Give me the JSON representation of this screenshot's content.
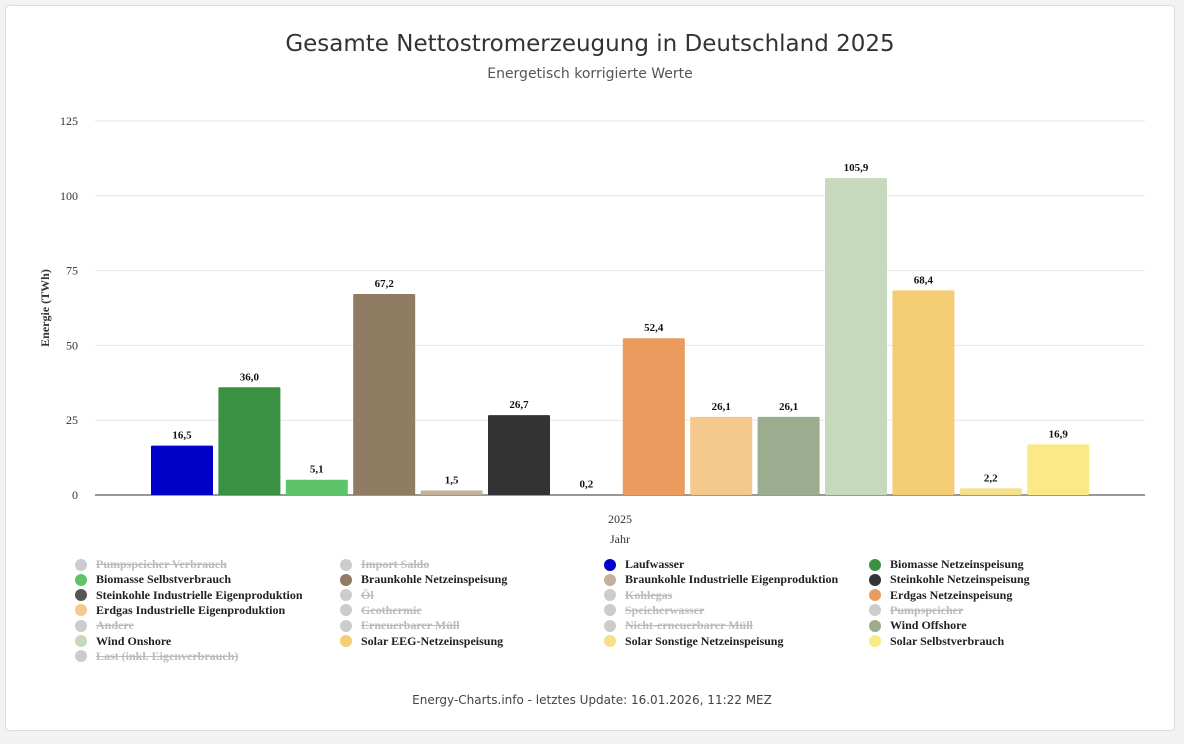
{
  "chart_data": {
    "type": "bar",
    "title": "Gesamte Nettostromerzeugung in Deutschland 2025",
    "subtitle": "Energetisch korrigierte Werte",
    "xlabel": "Jahr",
    "ylabel": "Energie (TWh)",
    "categories": [
      "2025"
    ],
    "ylim": [
      0,
      125
    ],
    "yticks": [
      "0",
      "25",
      "50",
      "75",
      "100",
      "125"
    ],
    "grid": true,
    "legend_position": "bottom",
    "bar_series": [
      {
        "name": "Laufwasser",
        "value": 16.5,
        "label": "16,5",
        "color": "#0000c8"
      },
      {
        "name": "Biomasse Netzeinspeisung",
        "value": 36.0,
        "label": "36,0",
        "color": "#3a9142"
      },
      {
        "name": "Biomasse Selbstverbrauch",
        "value": 5.1,
        "label": "5,1",
        "color": "#5ec46a"
      },
      {
        "name": "Braunkohle Netzeinspeisung",
        "value": 67.2,
        "label": "67,2",
        "color": "#8f7c62"
      },
      {
        "name": "Braunkohle Industrielle Eigenproduktion",
        "value": 1.5,
        "label": "1,5",
        "color": "#c4b19b"
      },
      {
        "name": "Steinkohle Netzeinspeisung",
        "value": 26.7,
        "label": "26,7",
        "color": "#333333"
      },
      {
        "name": "Steinkohle Industrielle Eigenproduktion",
        "value": 0.2,
        "label": "0,2",
        "color": "#555555"
      },
      {
        "name": "Erdgas Netzeinspeisung",
        "value": 52.4,
        "label": "52,4",
        "color": "#ea9b5d"
      },
      {
        "name": "Erdgas Industrielle Eigenproduktion",
        "value": 26.1,
        "label": "26,1",
        "color": "#f5c98b"
      },
      {
        "name": "Wind Offshore",
        "value": 26.1,
        "label": "26,1",
        "color": "#9cad8f"
      },
      {
        "name": "Wind Onshore",
        "value": 105.9,
        "label": "105,9",
        "color": "#c7d9bd"
      },
      {
        "name": "Solar EEG-Netzeinspeisung",
        "value": 68.4,
        "label": "68,4",
        "color": "#f4cd74"
      },
      {
        "name": "Solar Sonstige Netzeinspeisung",
        "value": 2.2,
        "label": "2,2",
        "color": "#f7e08a"
      },
      {
        "name": "Solar Selbstverbrauch",
        "value": 16.9,
        "label": "16,9",
        "color": "#fbe985"
      }
    ],
    "legend": [
      {
        "name": "Pumpspeicher Verbrauch",
        "color": "#cccccc",
        "hidden": true
      },
      {
        "name": "Import Saldo",
        "color": "#cccccc",
        "hidden": true
      },
      {
        "name": "Laufwasser",
        "color": "#0000c8",
        "hidden": false
      },
      {
        "name": "Biomasse Netzeinspeisung",
        "color": "#3a9142",
        "hidden": false
      },
      {
        "name": "Biomasse Selbstverbrauch",
        "color": "#5ec46a",
        "hidden": false
      },
      {
        "name": "Braunkohle Netzeinspeisung",
        "color": "#8f7c62",
        "hidden": false
      },
      {
        "name": "Braunkohle Industrielle Eigenproduktion",
        "color": "#c4b19b",
        "hidden": false
      },
      {
        "name": "Steinkohle Netzeinspeisung",
        "color": "#333333",
        "hidden": false
      },
      {
        "name": "Steinkohle Industrielle Eigenproduktion",
        "color": "#555555",
        "hidden": false
      },
      {
        "name": "Öl",
        "color": "#cccccc",
        "hidden": true
      },
      {
        "name": "Kohlegas",
        "color": "#cccccc",
        "hidden": true
      },
      {
        "name": "Erdgas Netzeinspeisung",
        "color": "#ea9b5d",
        "hidden": false
      },
      {
        "name": "Erdgas Industrielle Eigenproduktion",
        "color": "#f5c98b",
        "hidden": false
      },
      {
        "name": "Geothermie",
        "color": "#cccccc",
        "hidden": true
      },
      {
        "name": "Speicherwasser",
        "color": "#cccccc",
        "hidden": true
      },
      {
        "name": "Pumpspeicher",
        "color": "#cccccc",
        "hidden": true
      },
      {
        "name": "Andere",
        "color": "#cccccc",
        "hidden": true
      },
      {
        "name": "Erneuerbarer Müll",
        "color": "#cccccc",
        "hidden": true
      },
      {
        "name": "Nicht-erneuerbarer Müll",
        "color": "#cccccc",
        "hidden": true
      },
      {
        "name": "Wind Offshore",
        "color": "#9cad8f",
        "hidden": false
      },
      {
        "name": "Wind Onshore",
        "color": "#c7d9bd",
        "hidden": false
      },
      {
        "name": "Solar EEG-Netzeinspeisung",
        "color": "#f4cd74",
        "hidden": false
      },
      {
        "name": "Solar Sonstige Netzeinspeisung",
        "color": "#f7e08a",
        "hidden": false
      },
      {
        "name": "Solar Selbstverbrauch",
        "color": "#fbe985",
        "hidden": false
      },
      {
        "name": "Last (inkl. Eigenverbrauch)",
        "color": "#cccccc",
        "hidden": true
      }
    ]
  },
  "footer": "Energy-Charts.info - letztes Update: 16.01.2026, 11:22 MEZ"
}
